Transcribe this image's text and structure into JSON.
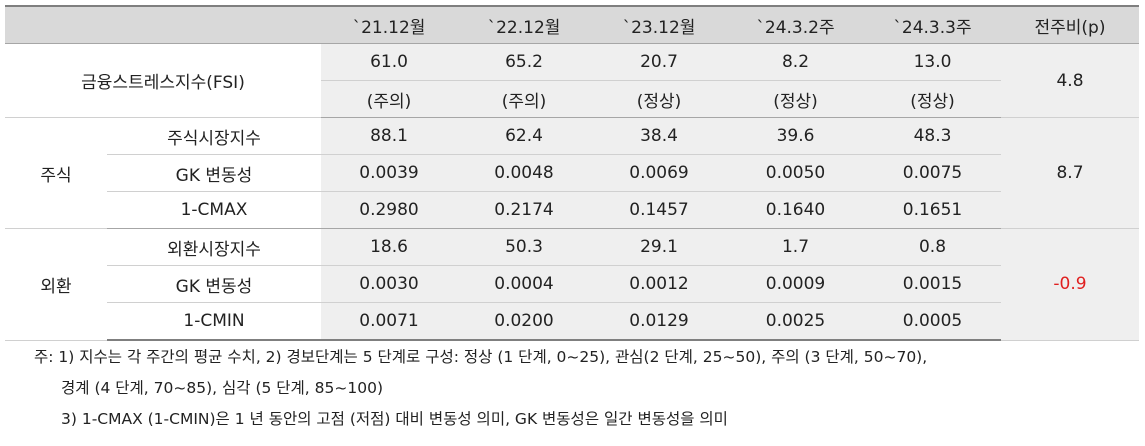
{
  "header": [
    "",
    "",
    "`21.12월",
    "`22.12월",
    "`23.12월",
    "`24.3.2주",
    "`24.3.3주",
    "전주비(p)"
  ],
  "fsi": {
    "label": "금융스트레스지수(FSI)",
    "values": [
      "61.0",
      "65.2",
      "20.7",
      "8.2",
      "13.0"
    ],
    "status": [
      "(주의)",
      "(주의)",
      "(정상)",
      "(정상)",
      "(정상)"
    ],
    "change": "4.8"
  },
  "stock": {
    "label": "주식",
    "change": "8.7",
    "rows": [
      {
        "name": "주식시장지수",
        "values": [
          "88.1",
          "62.4",
          "38.4",
          "39.6",
          "48.3"
        ]
      },
      {
        "name": "GK 변동성",
        "values": [
          "0.0039",
          "0.0048",
          "0.0069",
          "0.0050",
          "0.0075"
        ]
      },
      {
        "name": "1-CMAX",
        "values": [
          "0.2980",
          "0.2174",
          "0.1457",
          "0.1640",
          "0.1651"
        ]
      }
    ]
  },
  "fx": {
    "label": "외환",
    "change": "-0.9",
    "rows": [
      {
        "name": "외환시장지수",
        "values": [
          "18.6",
          "50.3",
          "29.1",
          "1.7",
          "0.8"
        ]
      },
      {
        "name": "GK 변동성",
        "values": [
          "0.0030",
          "0.0004",
          "0.0012",
          "0.0009",
          "0.0015"
        ]
      },
      {
        "name": "1-CMIN",
        "values": [
          "0.0071",
          "0.0200",
          "0.0129",
          "0.0025",
          "0.0005"
        ]
      }
    ]
  },
  "notes": [
    "주: 1) 지수는 각 주간의 평균 수치, 2) 경보단계는 5 단계로 구성: 정상 (1 단계, 0~25), 관심(2 단계, 25~50), 주의 (3 단계, 50~70),",
    "경계 (4 단계, 70~85), 심각 (5 단계, 85~100)",
    "3) 1-CMAX (1-CMIN)은 1 년 동안의 고점 (저점) 대비 변동성 의미, GK 변동성은 일간 변동성을 의미"
  ],
  "colors": {
    "header_bg": "#d9d9d9",
    "shade_bg": "#efefef",
    "negative": "#e02020"
  }
}
